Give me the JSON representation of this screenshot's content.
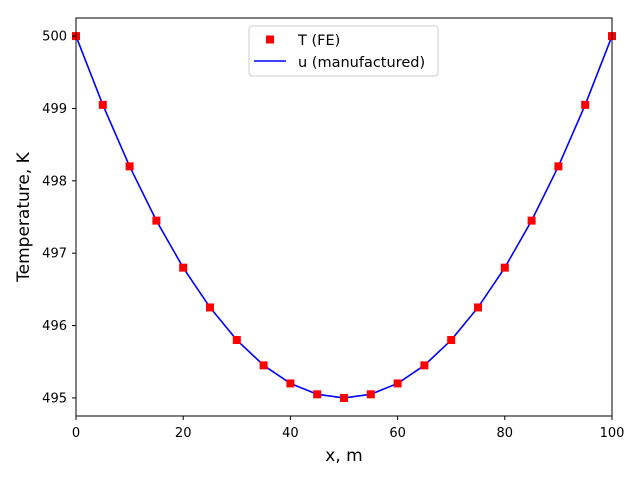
{
  "chart_data": {
    "type": "line",
    "xlabel": "x, m",
    "ylabel": "Temperature, K",
    "xlim": [
      0,
      100
    ],
    "ylim": [
      494.75,
      500.25
    ],
    "xticks": [
      0,
      20,
      40,
      60,
      80,
      100
    ],
    "yticks": [
      495,
      496,
      497,
      498,
      499,
      500
    ],
    "grid": false,
    "legend_position": "upper-center",
    "series": [
      {
        "name": "T (FE)",
        "style": "markers",
        "marker": "square",
        "color": "#ff0000",
        "x": [
          0,
          5,
          10,
          15,
          20,
          25,
          30,
          35,
          40,
          45,
          50,
          55,
          60,
          65,
          70,
          75,
          80,
          85,
          90,
          95,
          100
        ],
        "y": [
          500,
          499.05,
          498.2,
          497.45,
          496.8,
          496.25,
          495.8,
          495.45,
          495.2,
          495.05,
          495,
          495.05,
          495.2,
          495.45,
          495.8,
          496.25,
          496.8,
          497.45,
          498.2,
          499.05,
          500
        ]
      },
      {
        "name": "u (manufactured)",
        "style": "line",
        "color": "#0000ff",
        "x": [
          0,
          5,
          10,
          15,
          20,
          25,
          30,
          35,
          40,
          45,
          50,
          55,
          60,
          65,
          70,
          75,
          80,
          85,
          90,
          95,
          100
        ],
        "y": [
          500,
          499.05,
          498.2,
          497.45,
          496.8,
          496.25,
          495.8,
          495.45,
          495.2,
          495.05,
          495,
          495.05,
          495.2,
          495.45,
          495.8,
          496.25,
          496.8,
          497.45,
          498.2,
          499.05,
          500
        ]
      }
    ]
  }
}
